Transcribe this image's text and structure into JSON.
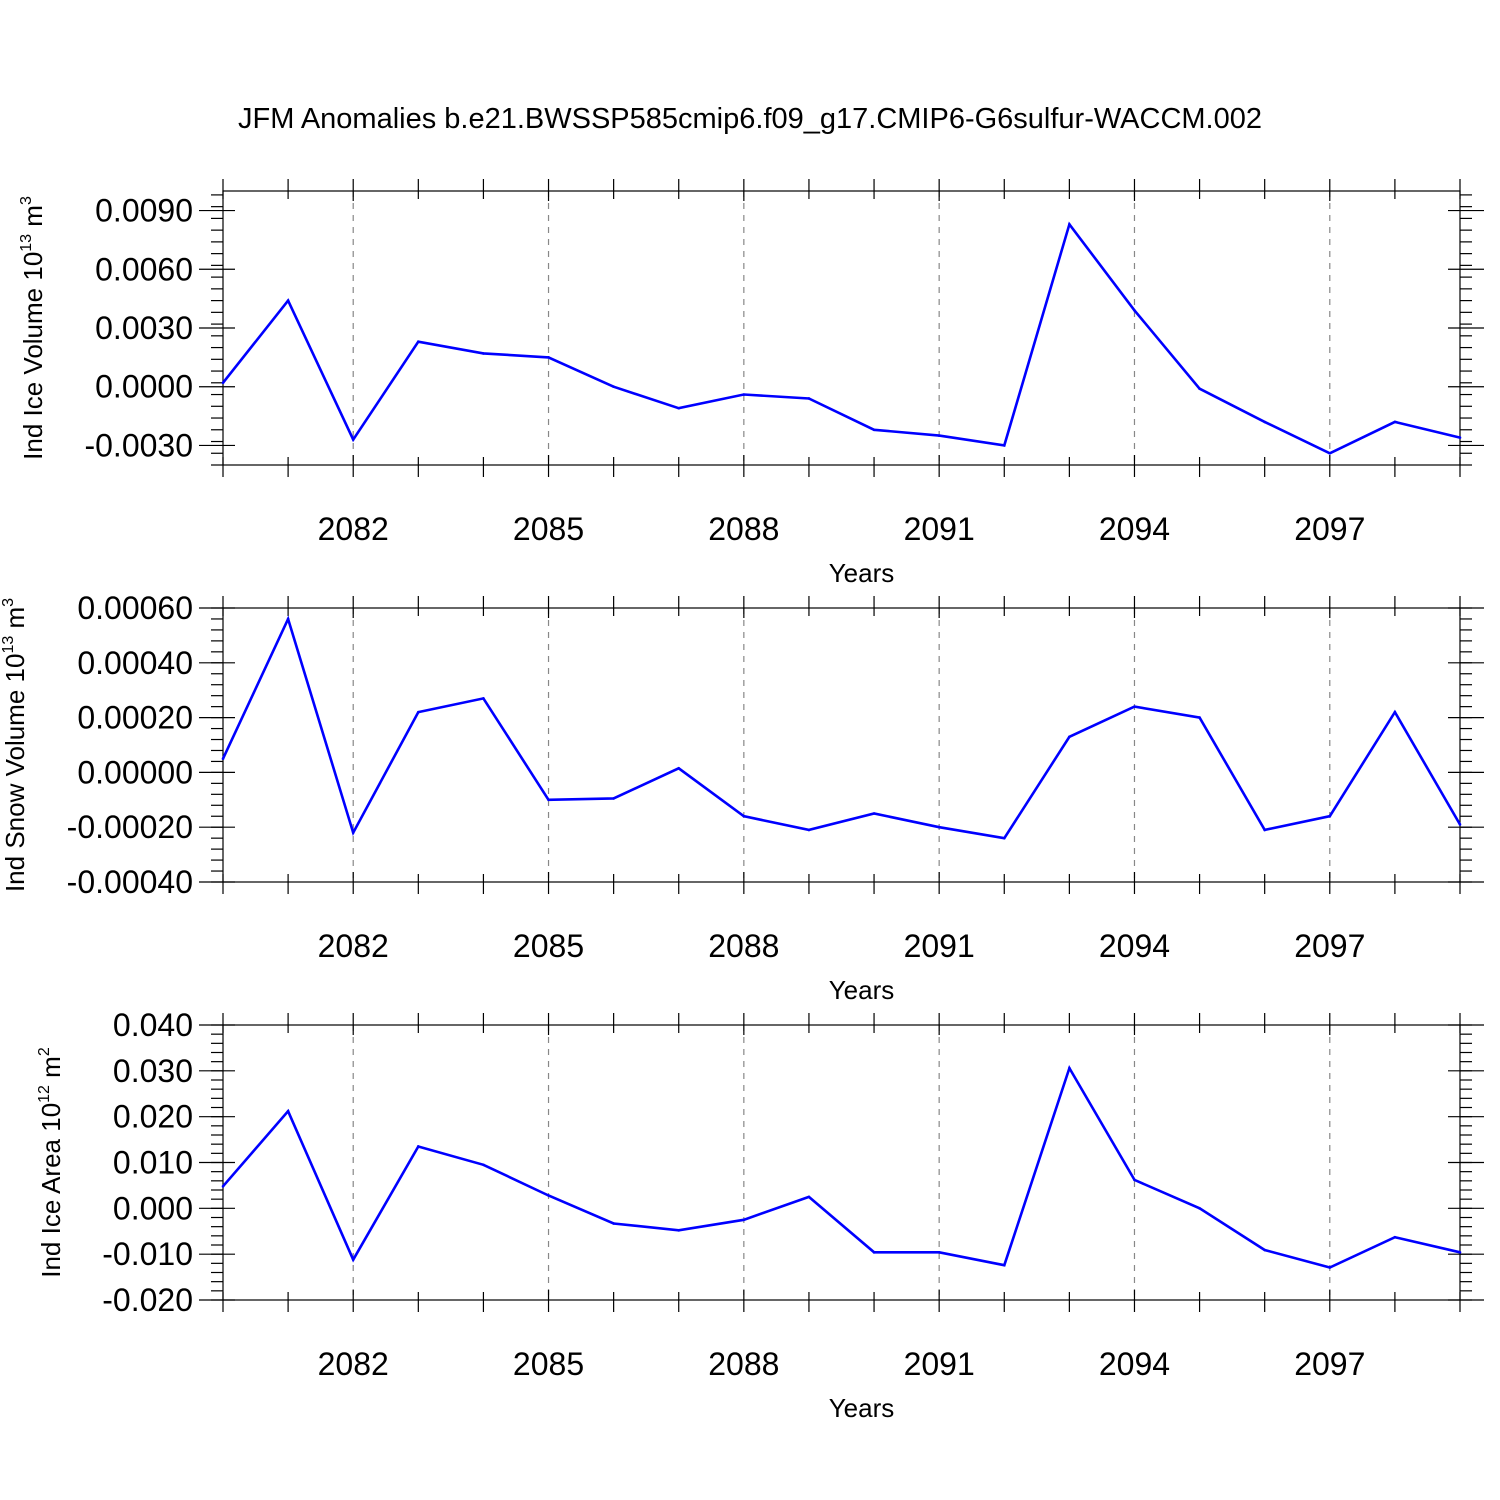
{
  "title": "JFM Anomalies b.e21.BWSSP585cmip6.f09_g17.CMIP6-G6sulfur-WACCM.002",
  "line_color": "#0000ff",
  "chart_data": [
    {
      "type": "line",
      "xlabel": "Years",
      "ylabel": "Ind Ice Volume 10",
      "ylabel_exp": "13",
      "ylabel_unit": " m",
      "ylabel_unit_exp": "3",
      "xlim": [
        2080,
        2099
      ],
      "ylim": [
        -0.004,
        0.01
      ],
      "x_ticks": [
        "2082",
        "2085",
        "2088",
        "2091",
        "2094",
        "2097"
      ],
      "y_ticks": [
        "0.0090",
        "0.0060",
        "0.0030",
        "0.0000",
        "-0.0030"
      ],
      "y_tick_values": [
        0.009,
        0.006,
        0.003,
        0.0,
        -0.003
      ],
      "y_minor_step": 0.0006,
      "grid": "vertical dashed at labeled years",
      "x": [
        2080,
        2081,
        2082,
        2083,
        2084,
        2085,
        2086,
        2087,
        2088,
        2089,
        2090,
        2091,
        2092,
        2093,
        2094,
        2095,
        2096,
        2097,
        2098,
        2099
      ],
      "values": [
        0.0002,
        0.0044,
        -0.0027,
        0.0023,
        0.0017,
        0.0015,
        0.0,
        -0.0011,
        -0.0004,
        -0.0006,
        -0.0022,
        -0.0025,
        -0.003,
        0.0083,
        0.0039,
        -0.0001,
        -0.0018,
        -0.0034,
        -0.0018,
        -0.0026
      ]
    },
    {
      "type": "line",
      "xlabel": "Years",
      "ylabel": "Ind Snow Volume 10",
      "ylabel_exp": "13",
      "ylabel_unit": " m",
      "ylabel_unit_exp": "3",
      "xlim": [
        2080,
        2099
      ],
      "ylim": [
        -0.0004,
        0.0006
      ],
      "x_ticks": [
        "2082",
        "2085",
        "2088",
        "2091",
        "2094",
        "2097"
      ],
      "y_ticks": [
        "0.00060",
        "0.00040",
        "0.00020",
        "0.00000",
        "-0.00020",
        "-0.00040"
      ],
      "y_tick_values": [
        0.0006,
        0.0004,
        0.0002,
        0.0,
        -0.0002,
        -0.0004
      ],
      "y_minor_step": 4e-05,
      "grid": "vertical dashed at labeled years",
      "x": [
        2080,
        2081,
        2082,
        2083,
        2084,
        2085,
        2086,
        2087,
        2088,
        2089,
        2090,
        2091,
        2092,
        2093,
        2094,
        2095,
        2096,
        2097,
        2098,
        2099
      ],
      "values": [
        5e-05,
        0.00056,
        -0.00022,
        0.00022,
        0.00027,
        -0.0001,
        -9.5e-05,
        1.5e-05,
        -0.00016,
        -0.00021,
        -0.00015,
        -0.0002,
        -0.00024,
        0.00013,
        0.00024,
        0.0002,
        -0.00021,
        -0.00016,
        0.00022,
        -0.00019
      ]
    },
    {
      "type": "line",
      "xlabel": "Years",
      "ylabel": "Ind Ice Area 10",
      "ylabel_exp": "12",
      "ylabel_unit": " m",
      "ylabel_unit_exp": "2",
      "xlim": [
        2080,
        2099
      ],
      "ylim": [
        -0.02,
        0.04
      ],
      "x_ticks": [
        "2082",
        "2085",
        "2088",
        "2091",
        "2094",
        "2097"
      ],
      "y_ticks": [
        "0.040",
        "0.030",
        "0.020",
        "0.010",
        "0.000",
        "-0.010",
        "-0.020"
      ],
      "y_tick_values": [
        0.04,
        0.03,
        0.02,
        0.01,
        0.0,
        -0.01,
        -0.02
      ],
      "y_minor_step": 0.002,
      "grid": "vertical dashed at labeled years",
      "x": [
        2080,
        2081,
        2082,
        2083,
        2084,
        2085,
        2086,
        2087,
        2088,
        2089,
        2090,
        2091,
        2092,
        2093,
        2094,
        2095,
        2096,
        2097,
        2098,
        2099
      ],
      "values": [
        0.0048,
        0.0212,
        -0.0112,
        0.0135,
        0.0095,
        0.0028,
        -0.0033,
        -0.0048,
        -0.0025,
        0.0025,
        -0.0096,
        -0.0096,
        -0.0124,
        0.0306,
        0.0062,
        0.0,
        -0.0091,
        -0.0129,
        -0.0063,
        -0.0096
      ]
    }
  ]
}
